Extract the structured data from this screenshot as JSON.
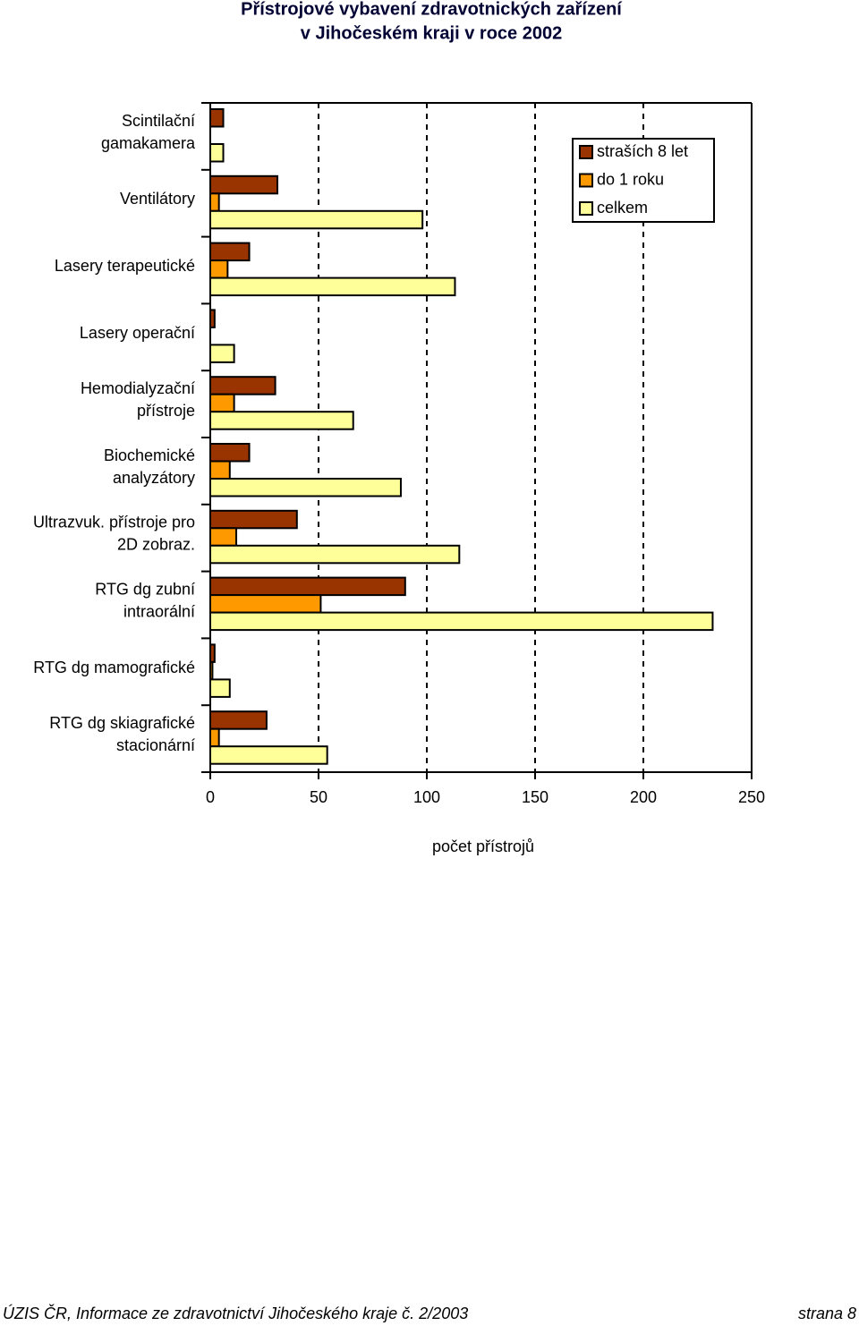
{
  "chart_data": {
    "type": "barh",
    "title": "Přístrojové vybavení zdravotnických zařízení",
    "subtitle": "v Jihočeském kraji v roce 2002",
    "x_label": "počet přístrojů",
    "categories": [
      "Scintilační\ngamakamera",
      "Ventilátory",
      "Lasery terapeutické",
      "Lasery operační",
      "Hemodialyzační\npřístroje",
      "Biochemické\nanalyzátory",
      "Ultrazvuk. přístroje pro\n2D zobraz.",
      "RTG dg zubní\nintraorální",
      "RTG dg mamografické",
      "RTG dg skiagrafické\nstacionární"
    ],
    "series": [
      {
        "name": "straších 8 let",
        "color": "#993300",
        "values": [
          6,
          31,
          18,
          2,
          30,
          18,
          40,
          90,
          2,
          26
        ]
      },
      {
        "name": "do 1 roku",
        "color": "#ff9900",
        "values": [
          0,
          4,
          8,
          0,
          11,
          9,
          12,
          51,
          1,
          4
        ]
      },
      {
        "name": "celkem",
        "color": "#ffff99",
        "values": [
          6,
          98,
          113,
          11,
          66,
          88,
          115,
          232,
          9,
          54
        ]
      }
    ],
    "xlim": [
      0,
      250
    ],
    "xticks": [
      0,
      50,
      100,
      150,
      200,
      250
    ],
    "grid": true,
    "legend": "upper right"
  },
  "footer": {
    "left": "ÚZIS ČR, Informace ze zdravotnictví Jihočeského kraje č. 2/2003",
    "right": "strana 8"
  }
}
